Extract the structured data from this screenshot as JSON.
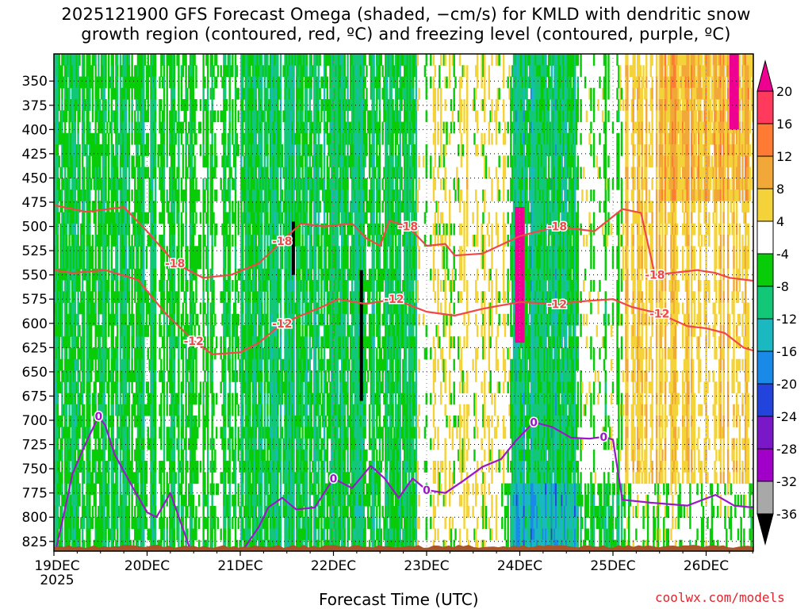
{
  "title_line1": "2025121900 GFS Forecast Omega (shaded, −cm/s) for KMLD with dendritic snow",
  "title_line2": "growth region (contoured, red, ºC) and freezing level (contoured, purple, ºC)",
  "xlabel": "Forecast Time (UTC)",
  "credit": "coolwx.com/models",
  "year_label": "2025",
  "chart_data": {
    "type": "heatmap",
    "title": "2025121900 GFS Forecast Omega (shaded, −cm/s) for KMLD with dendritic snow growth region (contoured, red, ºC) and freezing level (contoured, purple, ºC)",
    "xlabel": "Forecast Time (UTC)",
    "ylabel": "",
    "x_ticks": [
      "19DEC",
      "20DEC",
      "21DEC",
      "22DEC",
      "23DEC",
      "24DEC",
      "25DEC",
      "26DEC"
    ],
    "x_range_days": [
      0,
      7.5
    ],
    "y_ticks": [
      350,
      375,
      400,
      425,
      450,
      475,
      500,
      525,
      550,
      575,
      600,
      625,
      650,
      675,
      700,
      725,
      750,
      775,
      800,
      825
    ],
    "y_range_hpa": [
      322,
      835
    ],
    "grid": true,
    "colorbar": {
      "labels": [
        20,
        16,
        12,
        8,
        4,
        -4,
        -8,
        -12,
        -16,
        -20,
        -24,
        -28,
        -32,
        -36
      ],
      "colors": [
        "#ff3a5c",
        "#ff7a32",
        "#f2a838",
        "#f4d23a",
        "#ffffff",
        "#08cc08",
        "#12c878",
        "#1ab8c0",
        "#1a8ae8",
        "#2244dd",
        "#7a18c8",
        "#a000c8",
        "#a8a8a8",
        "#000000"
      ],
      "top_extend_color": "#ee0090",
      "bottom_extend_color": "#000000"
    },
    "contours": [
      {
        "label": "-18",
        "color": "#f04848",
        "points": [
          [
            0.0,
            478
          ],
          [
            0.35,
            485
          ],
          [
            0.75,
            480
          ],
          [
            1.0,
            505
          ],
          [
            1.3,
            538
          ],
          [
            1.6,
            553
          ],
          [
            1.9,
            550
          ],
          [
            2.2,
            538
          ],
          [
            2.45,
            515
          ],
          [
            2.65,
            497
          ],
          [
            2.9,
            500
          ],
          [
            3.2,
            497
          ],
          [
            3.35,
            512
          ],
          [
            3.5,
            520
          ],
          [
            3.6,
            494
          ],
          [
            3.8,
            500
          ],
          [
            4.0,
            520
          ],
          [
            4.2,
            518
          ],
          [
            4.3,
            530
          ],
          [
            4.6,
            528
          ],
          [
            5.0,
            510
          ],
          [
            5.4,
            500
          ],
          [
            5.8,
            505
          ],
          [
            6.1,
            482
          ],
          [
            6.3,
            486
          ],
          [
            6.45,
            550
          ],
          [
            6.9,
            545
          ],
          [
            7.1,
            548
          ],
          [
            7.25,
            553
          ],
          [
            7.5,
            556
          ]
        ]
      },
      {
        "label": "-12",
        "color": "#f04848",
        "points": [
          [
            0.0,
            545
          ],
          [
            0.2,
            548
          ],
          [
            0.55,
            545
          ],
          [
            0.9,
            555
          ],
          [
            1.2,
            590
          ],
          [
            1.5,
            618
          ],
          [
            1.7,
            632
          ],
          [
            2.0,
            630
          ],
          [
            2.2,
            620
          ],
          [
            2.45,
            600
          ],
          [
            2.7,
            590
          ],
          [
            2.9,
            582
          ],
          [
            3.05,
            575
          ],
          [
            3.35,
            580
          ],
          [
            3.65,
            575
          ],
          [
            4.0,
            588
          ],
          [
            4.3,
            592
          ],
          [
            4.6,
            585
          ],
          [
            5.0,
            578
          ],
          [
            5.4,
            580
          ],
          [
            5.7,
            577
          ],
          [
            6.0,
            575
          ],
          [
            6.2,
            583
          ],
          [
            6.5,
            590
          ],
          [
            6.8,
            603
          ],
          [
            7.0,
            605
          ],
          [
            7.2,
            610
          ],
          [
            7.4,
            625
          ],
          [
            7.5,
            628
          ]
        ]
      },
      {
        "label": "0",
        "color": "#9a18c8",
        "points": [
          [
            0.0,
            842
          ],
          [
            0.1,
            800
          ],
          [
            0.2,
            755
          ],
          [
            0.35,
            722
          ],
          [
            0.48,
            696
          ],
          [
            0.55,
            705
          ],
          [
            0.65,
            735
          ],
          [
            0.85,
            770
          ],
          [
            1.0,
            795
          ],
          [
            1.1,
            800
          ],
          [
            1.25,
            775
          ],
          [
            1.45,
            830
          ],
          [
            1.6,
            840
          ],
          [
            2.0,
            838
          ],
          [
            2.2,
            810
          ],
          [
            2.3,
            790
          ],
          [
            2.45,
            780
          ],
          [
            2.6,
            792
          ],
          [
            2.8,
            790
          ],
          [
            3.0,
            760
          ],
          [
            3.2,
            770
          ],
          [
            3.4,
            747
          ],
          [
            3.55,
            760
          ],
          [
            3.7,
            780
          ],
          [
            3.85,
            760
          ],
          [
            4.0,
            772
          ],
          [
            4.2,
            775
          ],
          [
            4.4,
            762
          ],
          [
            4.6,
            748
          ],
          [
            4.8,
            740
          ],
          [
            4.95,
            722
          ],
          [
            5.15,
            702
          ],
          [
            5.35,
            707
          ],
          [
            5.55,
            718
          ],
          [
            5.75,
            719
          ],
          [
            5.9,
            717
          ],
          [
            6.0,
            720
          ],
          [
            6.1,
            782
          ],
          [
            6.4,
            785
          ],
          [
            6.8,
            788
          ],
          [
            7.1,
            777
          ],
          [
            7.3,
            788
          ],
          [
            7.5,
            790
          ]
        ]
      }
    ],
    "shaded_features": [
      {
        "field": "omega",
        "value_range": [
          -36,
          -28
        ],
        "x_day": 3.3,
        "pressure_range": [
          545,
          680
        ]
      },
      {
        "field": "omega",
        "value_range": [
          -36,
          -28
        ],
        "x_day": 2.57,
        "pressure_range": [
          495,
          550
        ]
      },
      {
        "field": "omega",
        "value_range": [
          20,
          24
        ],
        "x_day": 5.0,
        "pressure_range": [
          480,
          620
        ]
      },
      {
        "field": "omega",
        "value_range": [
          20,
          24
        ],
        "x_day": 7.3,
        "pressure_range": [
          322,
          400
        ]
      }
    ]
  }
}
